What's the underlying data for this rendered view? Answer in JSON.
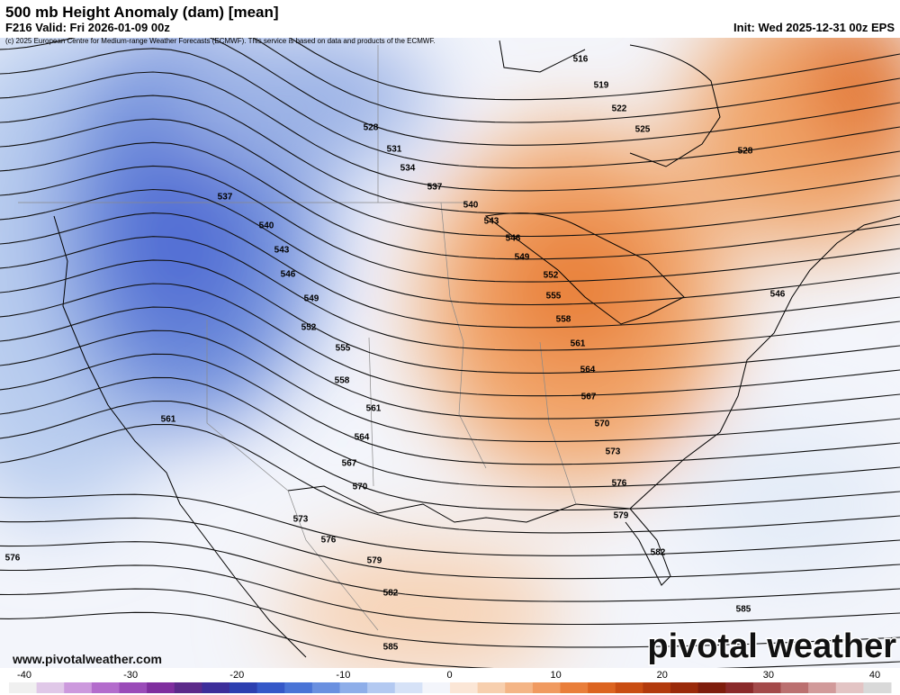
{
  "header": {
    "title": "500 mb Height Anomaly (dam) [mean]",
    "valid": "F216 Valid: Fri 2026-01-09 00z",
    "init": "Init: Wed 2025-12-31 00z EPS",
    "credit": "(c) 2025 European Centre for Medium-range Weather Forecasts (ECMWF). This service is based on data and products of the ECMWF."
  },
  "map": {
    "contour_labels": [
      "516",
      "519",
      "522",
      "525",
      "528",
      "528",
      "531",
      "534",
      "537",
      "537",
      "540",
      "540",
      "543",
      "543",
      "546",
      "546",
      "546",
      "549",
      "549",
      "552",
      "552",
      "555",
      "555",
      "558",
      "558",
      "561",
      "561",
      "561",
      "564",
      "564",
      "567",
      "567",
      "570",
      "570",
      "573",
      "573",
      "576",
      "576",
      "576",
      "579",
      "579",
      "582",
      "582",
      "585",
      "585"
    ]
  },
  "footer": {
    "website": "www.pivotalweather.com",
    "logo": "pivotal weather"
  },
  "colorbar": {
    "ticks": [
      -40,
      -30,
      -20,
      -10,
      0,
      10,
      20,
      30,
      40
    ]
  }
}
